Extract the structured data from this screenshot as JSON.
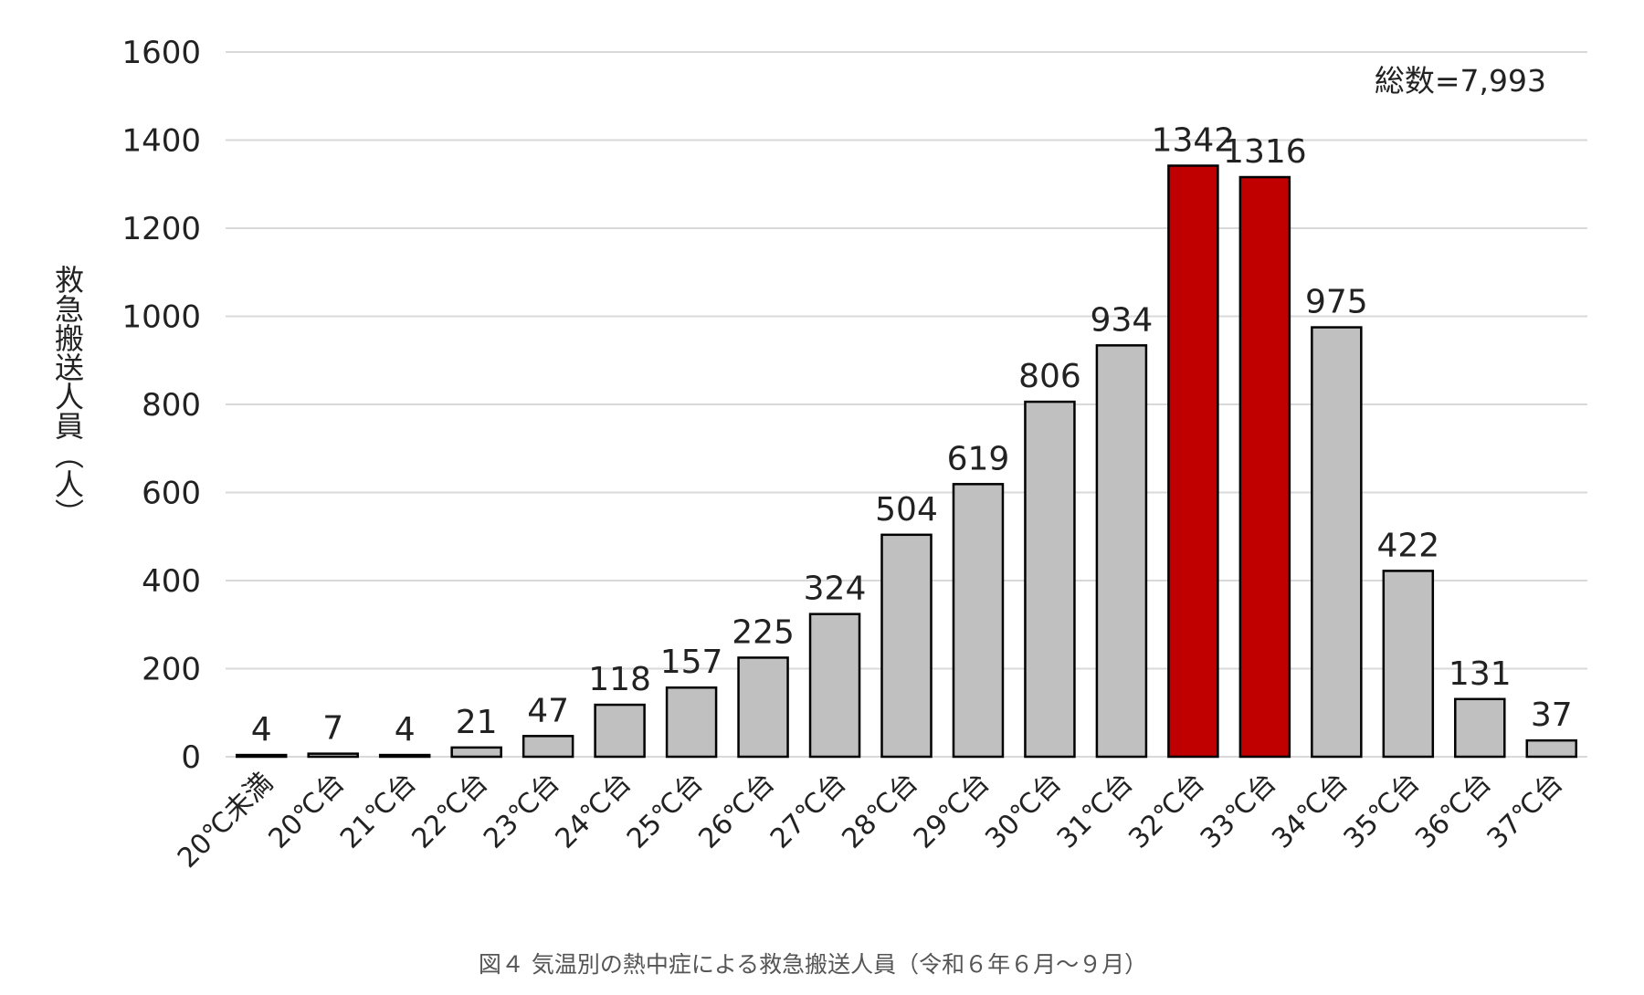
{
  "chart_data": {
    "type": "bar",
    "title": "",
    "caption": "図４ 気温別の熱中症による救急搬送人員（令和６年６月～９月）",
    "xlabel": "",
    "ylabel": "救急搬送人員（人）",
    "ylim": [
      0,
      1600
    ],
    "yticks": [
      0,
      200,
      400,
      600,
      800,
      1000,
      1200,
      1400,
      1600
    ],
    "grid": true,
    "annotation": "総数=7,993",
    "categories": [
      "20℃未満",
      "20℃台",
      "21℃台",
      "22℃台",
      "23℃台",
      "24℃台",
      "25℃台",
      "26℃台",
      "27℃台",
      "28℃台",
      "29℃台",
      "30℃台",
      "31℃台",
      "32℃台",
      "33℃台",
      "34℃台",
      "35℃台",
      "36℃台",
      "37℃台"
    ],
    "values": [
      4,
      7,
      4,
      21,
      47,
      118,
      157,
      225,
      324,
      504,
      619,
      806,
      934,
      1342,
      1316,
      975,
      422,
      131,
      37
    ],
    "highlight": [
      false,
      false,
      false,
      false,
      false,
      false,
      false,
      false,
      false,
      false,
      false,
      false,
      false,
      true,
      true,
      false,
      false,
      false,
      false
    ],
    "colors": {
      "default": "#c0c0c0",
      "highlight": "#c00000",
      "outline": "#000000",
      "grid": "#d9d9d9"
    }
  }
}
